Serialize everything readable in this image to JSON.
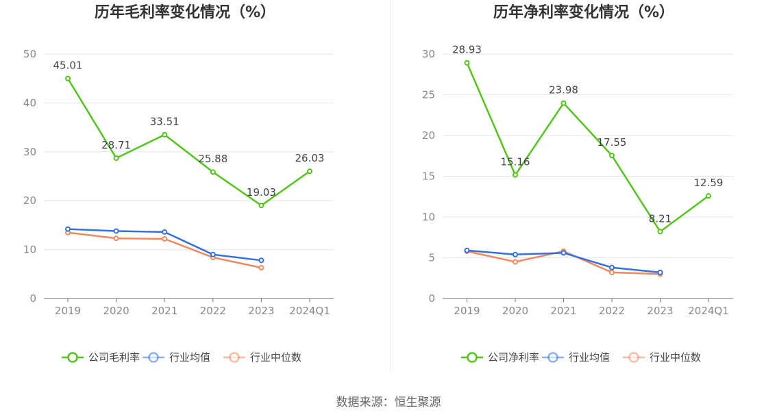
{
  "source": "数据来源：恒生聚源",
  "colors": {
    "company": "#52c41a",
    "avg": "#3370e0",
    "median": "#f0885c"
  },
  "chart_data": [
    {
      "type": "line",
      "title": "历年毛利率变化情况（%）",
      "categories": [
        "2019",
        "2020",
        "2021",
        "2022",
        "2023",
        "2024Q1"
      ],
      "ylim": [
        0,
        50
      ],
      "yticks": [
        0,
        10,
        20,
        30,
        40,
        50
      ],
      "grid": true,
      "legend": "bottom",
      "series": [
        {
          "name": "公司毛利率",
          "key": "company",
          "values": [
            45.01,
            28.71,
            33.51,
            25.88,
            19.03,
            26.03
          ],
          "labels": [
            "45.01",
            "28.71",
            "33.51",
            "25.88",
            "19.03",
            "26.03"
          ]
        },
        {
          "name": "行业均值",
          "key": "avg",
          "values": [
            14.2,
            13.8,
            13.6,
            9.0,
            7.8,
            null
          ]
        },
        {
          "name": "行业中位数",
          "key": "median",
          "values": [
            13.5,
            12.3,
            12.2,
            8.4,
            6.3,
            null
          ]
        }
      ]
    },
    {
      "type": "line",
      "title": "历年净利率变化情况（%）",
      "categories": [
        "2019",
        "2020",
        "2021",
        "2022",
        "2023",
        "2024Q1"
      ],
      "ylim": [
        0,
        30
      ],
      "yticks": [
        0,
        5,
        10,
        15,
        20,
        25,
        30
      ],
      "grid": true,
      "legend": "bottom",
      "series": [
        {
          "name": "公司净利率",
          "key": "company",
          "values": [
            28.93,
            15.16,
            23.98,
            17.55,
            8.21,
            12.59
          ],
          "labels": [
            "28.93",
            "15.16",
            "23.98",
            "17.55",
            "8.21",
            "12.59"
          ]
        },
        {
          "name": "行业均值",
          "key": "avg",
          "values": [
            5.9,
            5.4,
            5.6,
            3.8,
            3.2,
            null
          ]
        },
        {
          "name": "行业中位数",
          "key": "median",
          "values": [
            5.8,
            4.5,
            5.8,
            3.2,
            3.0,
            null
          ]
        }
      ]
    }
  ]
}
